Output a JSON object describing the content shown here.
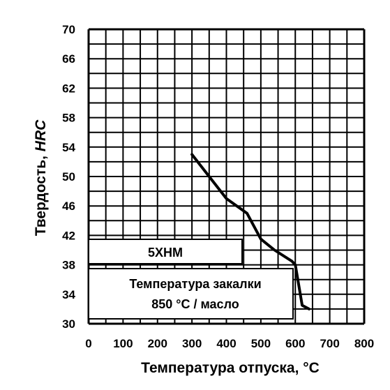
{
  "chart_data": {
    "type": "line",
    "title": "",
    "xlabel": "Температура отпуска, °C",
    "ylabel_prefix": "Твердость, ",
    "ylabel_unit": "HRC",
    "xlim": [
      0,
      800
    ],
    "ylim": [
      30,
      70
    ],
    "grid": true,
    "x_ticks": [
      "0",
      "100",
      "200",
      "300",
      "400",
      "500",
      "600",
      "700",
      "800"
    ],
    "y_ticks": [
      "30",
      "34",
      "38",
      "42",
      "46",
      "50",
      "54",
      "58",
      "62",
      "66",
      "70"
    ],
    "series": [
      {
        "x": [
          300,
          350,
          400,
          460,
          500,
          540,
          590,
          600,
          620,
          640
        ],
        "y": [
          53,
          50,
          47,
          45,
          41.5,
          40,
          38.5,
          38,
          32.5,
          32
        ]
      }
    ],
    "annotations": {
      "steel_grade": "5ХНМ",
      "quench_line1": "Температура закалки",
      "quench_line2": "850 °С / масло"
    }
  }
}
